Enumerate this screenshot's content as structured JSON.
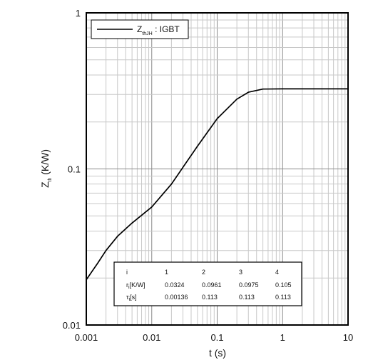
{
  "chart_data": {
    "type": "line",
    "xscale": "log",
    "yscale": "log",
    "xlim": [
      0.001,
      10
    ],
    "ylim": [
      0.01,
      1
    ],
    "grid": true,
    "legend_position": "top-left",
    "xlabel": "t (s)",
    "ylabel": {
      "main": "Z",
      "sub": "th",
      "rest": " (K/W)"
    },
    "x_ticks": [
      {
        "value": 0.001,
        "label": "0.001"
      },
      {
        "value": 0.01,
        "label": "0.01"
      },
      {
        "value": 0.1,
        "label": "0.1"
      },
      {
        "value": 1,
        "label": "1"
      },
      {
        "value": 10,
        "label": "10"
      }
    ],
    "y_ticks": [
      {
        "value": 0.01,
        "label": "0.01"
      },
      {
        "value": 0.1,
        "label": "0.1"
      },
      {
        "value": 1,
        "label": "1"
      }
    ],
    "series": [
      {
        "legend": {
          "main": "Z",
          "sub": "thJH",
          "rest": " : IGBT"
        },
        "color": "#000000",
        "x": [
          0.001,
          0.0015,
          0.002,
          0.003,
          0.005,
          0.01,
          0.02,
          0.05,
          0.1,
          0.2,
          0.3,
          0.5,
          1,
          2,
          5,
          10
        ],
        "y": [
          0.0195,
          0.025,
          0.03,
          0.037,
          0.045,
          0.057,
          0.08,
          0.14,
          0.21,
          0.28,
          0.31,
          0.325,
          0.326,
          0.326,
          0.326,
          0.326
        ]
      }
    ],
    "table": {
      "headers": [
        "i",
        "1",
        "2",
        "3",
        "4"
      ],
      "rows": [
        {
          "label": {
            "main": "r",
            "sub": "i",
            "rest": "[K/W]"
          },
          "values": [
            "0.0324",
            "0.0961",
            "0.0975",
            "0.105"
          ]
        },
        {
          "label": {
            "main": "τ",
            "sub": "i",
            "rest": "[s]"
          },
          "values": [
            "0.00136",
            "0.113",
            "0.113",
            "0.113"
          ]
        }
      ]
    }
  }
}
